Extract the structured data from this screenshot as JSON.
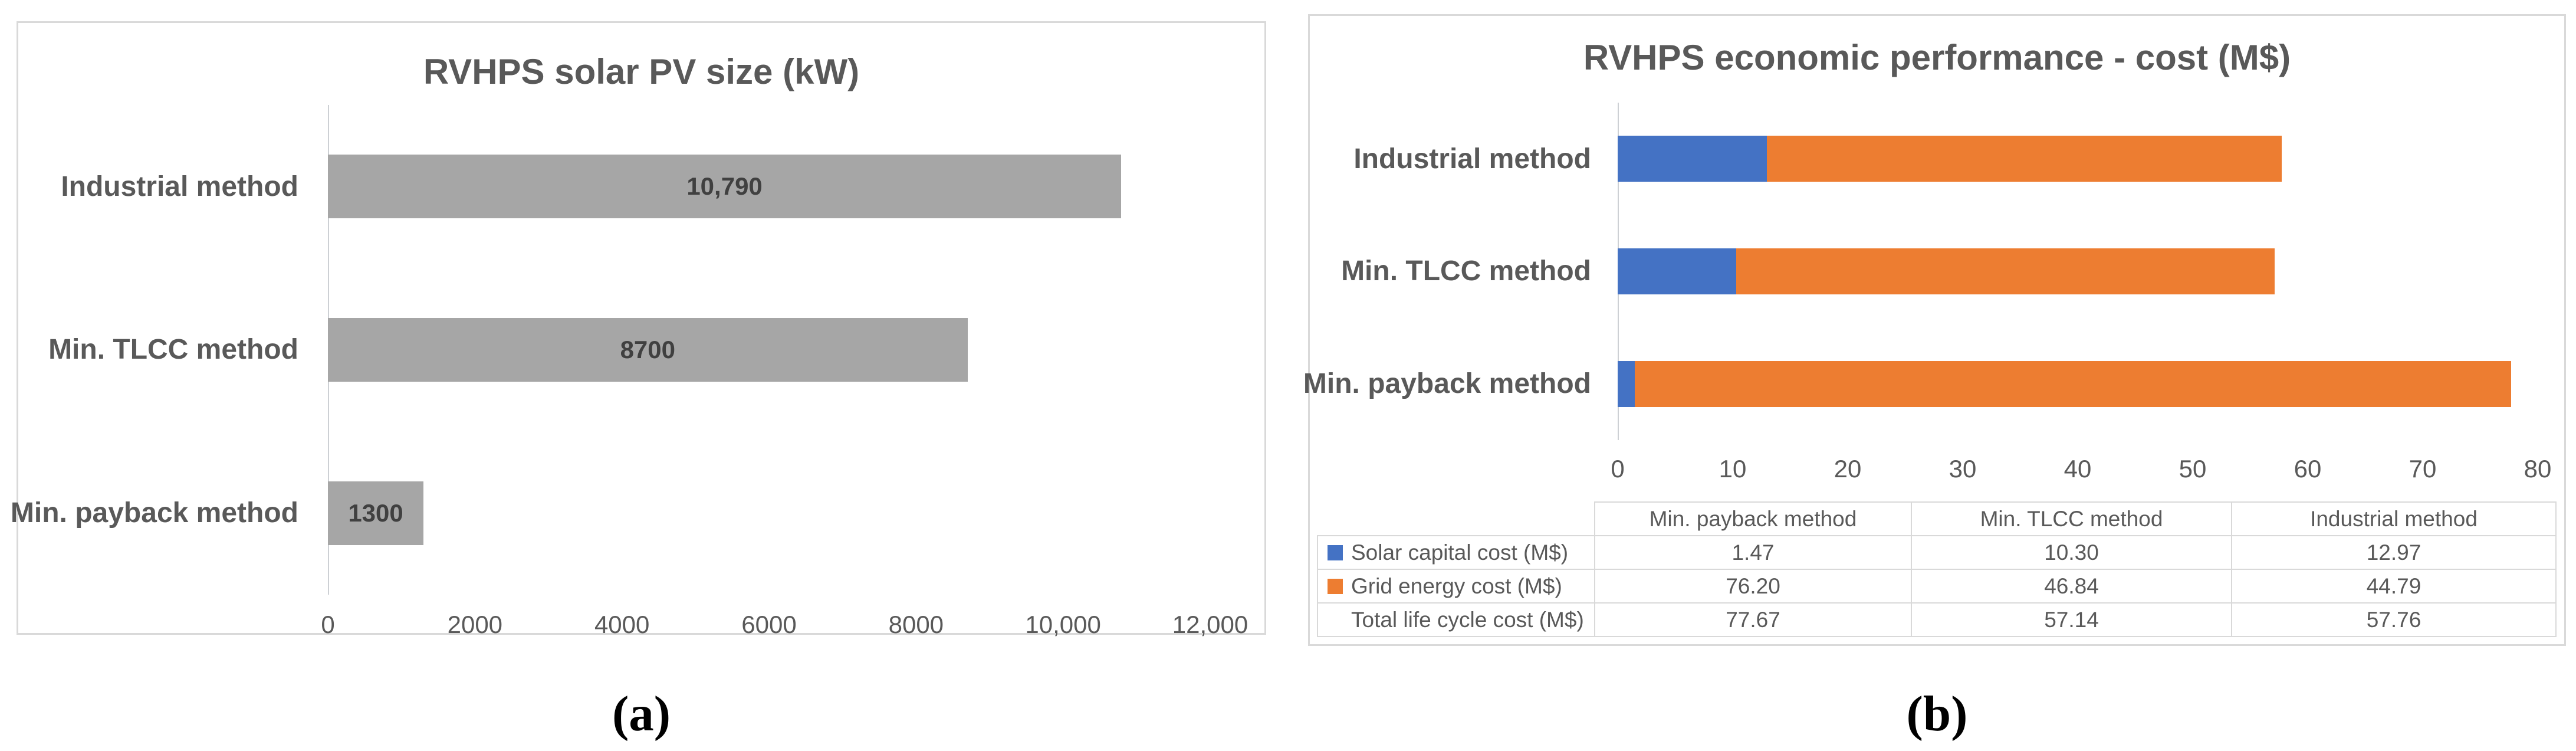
{
  "figure": {
    "caption_a": "(a)",
    "caption_b": "(b)"
  },
  "colors": {
    "bar_gray": "#a6a6a6",
    "solar_blue": "#4472c4",
    "grid_orange": "#ed7d31",
    "text_gray": "#595959",
    "border_gray": "#d9d9d9"
  },
  "chart_data": [
    {
      "type": "bar",
      "orientation": "horizontal",
      "title": "RVHPS solar PV size (kW)",
      "categories": [
        "Industrial method",
        "Min. TLCC method",
        "Min. payback method"
      ],
      "values": [
        10790,
        8700,
        1300
      ],
      "value_labels": [
        "10,790",
        "8700",
        "1300"
      ],
      "xlim": [
        0,
        12000
      ],
      "x_ticks": [
        "0",
        "2000",
        "4000",
        "6000",
        "8000",
        "10,000",
        "12,000"
      ],
      "bar_color": "#a6a6a6",
      "grid": false,
      "legend_position": "none"
    },
    {
      "type": "bar",
      "subtype": "stacked",
      "orientation": "horizontal",
      "title": "RVHPS economic performance - cost (M$)",
      "categories": [
        "Industrial method",
        "Min. TLCC method",
        "Min. payback method"
      ],
      "series": [
        {
          "name": "Solar capital cost (M$)",
          "color": "#4472c4",
          "values": [
            12.97,
            10.3,
            1.47
          ]
        },
        {
          "name": "Grid energy cost (M$)",
          "color": "#ed7d31",
          "values": [
            44.79,
            46.84,
            76.2
          ]
        }
      ],
      "totals": [
        57.76,
        57.14,
        77.67
      ],
      "xlim": [
        0,
        80
      ],
      "x_ticks": [
        "0",
        "10",
        "20",
        "30",
        "40",
        "50",
        "60",
        "70",
        "80"
      ],
      "grid": false,
      "legend_position": "table",
      "data_table": {
        "col_headers": [
          "Min. payback method",
          "Min. TLCC method",
          "Industrial method"
        ],
        "rows": [
          {
            "label": "Solar capital cost (M$)",
            "swatch": "#4472c4",
            "values": [
              "1.47",
              "10.30",
              "12.97"
            ]
          },
          {
            "label": "Grid energy cost (M$)",
            "swatch": "#ed7d31",
            "values": [
              "76.20",
              "46.84",
              "44.79"
            ]
          },
          {
            "label": "Total life cycle cost (M$)",
            "swatch": "",
            "values": [
              "77.67",
              "57.14",
              "57.76"
            ]
          }
        ]
      }
    }
  ]
}
